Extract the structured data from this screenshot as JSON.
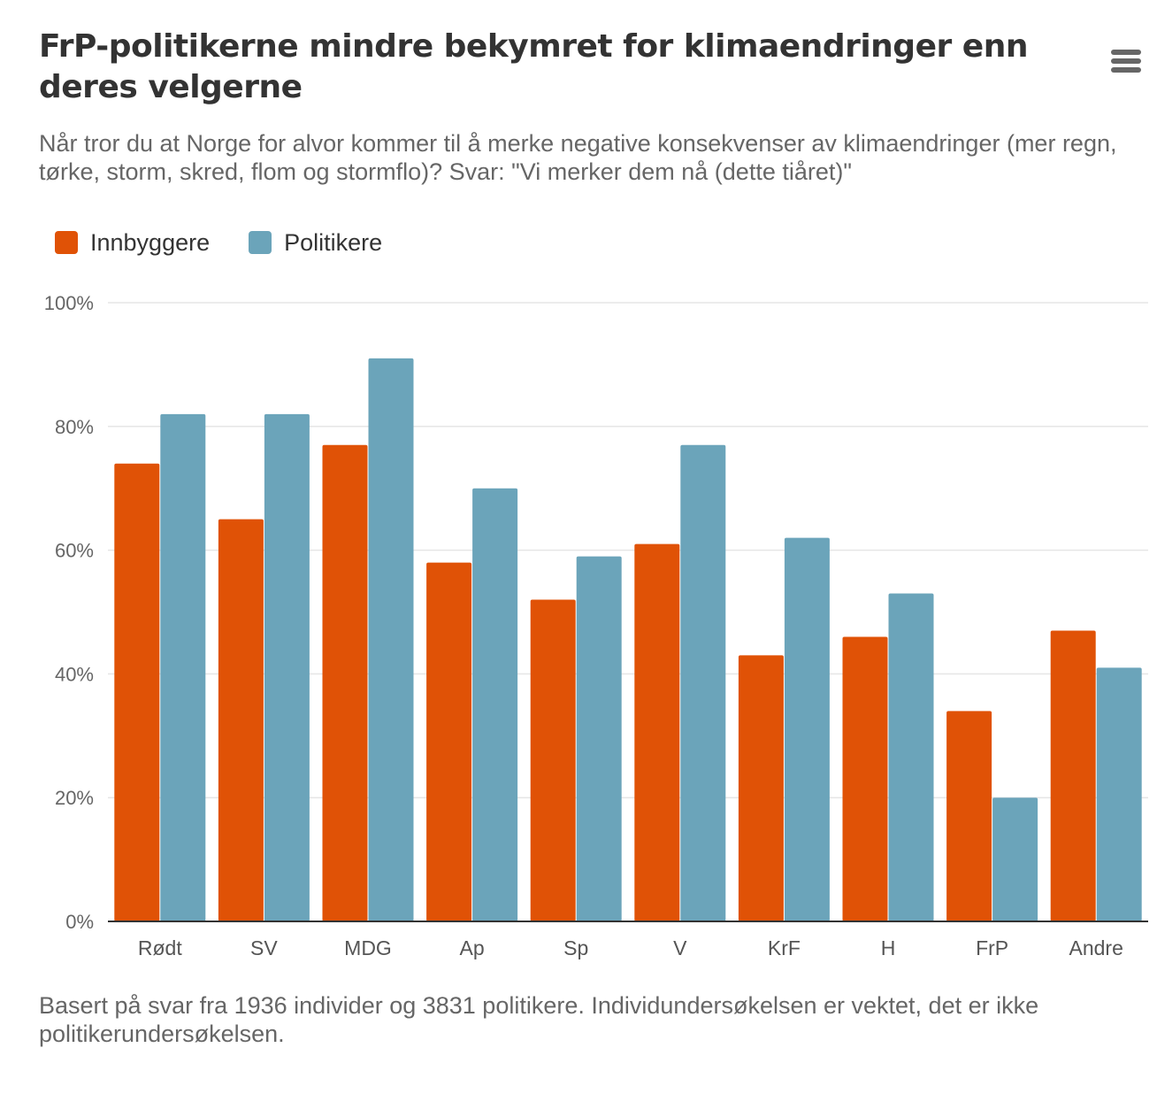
{
  "chart_data": {
    "type": "bar",
    "title": "FrP-politikerne mindre bekymret for klimaendringer enn deres velgerne",
    "subtitle": "Når tror du at Norge for alvor kommer til å merke negative konsekvenser av klimaendringer (mer regn, tørke, storm, skred, flom og stormflo)? Svar: \"Vi merker dem nå (dette tiåret)\"",
    "caption": "Basert på svar fra 1936 individer og 3831 politikere. Individundersøkelsen er vektet, det er ikke politikerundersøkelsen.",
    "categories": [
      "Rødt",
      "SV",
      "MDG",
      "Ap",
      "Sp",
      "V",
      "KrF",
      "H",
      "FrP",
      "Andre"
    ],
    "series": [
      {
        "name": "Innbyggere",
        "color": "#e05206",
        "values": [
          74,
          65,
          77,
          58,
          52,
          61,
          43,
          46,
          34,
          47
        ]
      },
      {
        "name": "Politikere",
        "color": "#6ba4ba",
        "values": [
          82,
          82,
          91,
          70,
          59,
          77,
          62,
          53,
          20,
          41
        ]
      }
    ],
    "ylim": [
      0,
      100
    ],
    "y_ticks": [
      0,
      20,
      40,
      60,
      80,
      100
    ],
    "y_tick_labels": [
      "0%",
      "20%",
      "40%",
      "60%",
      "80%",
      "100%"
    ],
    "grid": true,
    "legend_position": "top-left"
  },
  "colors": {
    "grid": "#e6e6e6",
    "axis": "#333333"
  },
  "menu": {
    "icon": "hamburger-menu-icon"
  }
}
